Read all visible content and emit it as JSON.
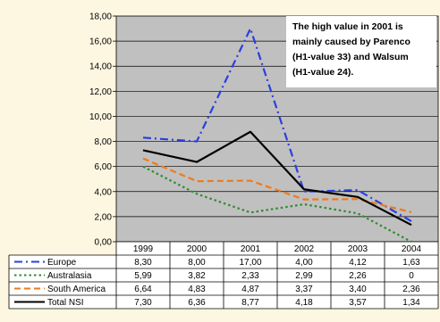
{
  "chart_data": {
    "type": "line",
    "categories": [
      "1999",
      "2000",
      "2001",
      "2002",
      "2003",
      "2004"
    ],
    "ylim": [
      0,
      18
    ],
    "yticks": [
      "0,00",
      "2,00",
      "4,00",
      "6,00",
      "8,00",
      "10,00",
      "12,00",
      "14,00",
      "16,00",
      "18,00"
    ],
    "grid": true,
    "plot_background": "#c0c0c0",
    "series": [
      {
        "name": "Europe",
        "values": [
          8.3,
          8.0,
          17.0,
          4.0,
          4.12,
          1.63
        ],
        "labels": [
          "8,30",
          "8,00",
          "17,00",
          "4,00",
          "4,12",
          "1,63"
        ],
        "color": "#2a3fe0",
        "dash": "dashdot"
      },
      {
        "name": "Australasia",
        "values": [
          5.99,
          3.82,
          2.33,
          2.99,
          2.26,
          0
        ],
        "labels": [
          "5,99",
          "3,82",
          "2,33",
          "2,99",
          "2,26",
          "0"
        ],
        "color": "#2e8b2e",
        "dash": "dotted"
      },
      {
        "name": "South America",
        "values": [
          6.64,
          4.83,
          4.87,
          3.37,
          3.4,
          2.36
        ],
        "labels": [
          "6,64",
          "4,83",
          "4,87",
          "3,37",
          "3,40",
          "2,36"
        ],
        "color": "#f07a1a",
        "dash": "dashed"
      },
      {
        "name": "Total NSI",
        "values": [
          7.3,
          6.36,
          8.77,
          4.18,
          3.57,
          1.34
        ],
        "labels": [
          "7,30",
          "6,36",
          "8,77",
          "4,18",
          "3,57",
          "1,34"
        ],
        "color": "#000000",
        "dash": "solid"
      }
    ],
    "annotation": [
      "The high value in 2001 is",
      "mainly caused by Parenco",
      "(H1-value 33) and Walsum",
      "(H1-value 24)."
    ]
  }
}
